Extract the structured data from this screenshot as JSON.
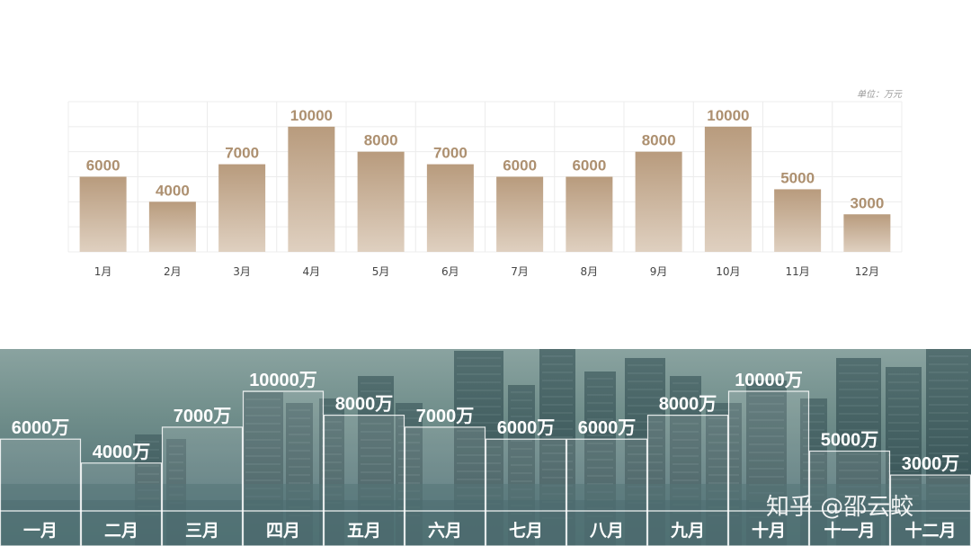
{
  "chart_data": [
    {
      "type": "bar",
      "unit_label": "单位：万元",
      "categories": [
        "1月",
        "2月",
        "3月",
        "4月",
        "5月",
        "6月",
        "7月",
        "8月",
        "9月",
        "10月",
        "11月",
        "12月"
      ],
      "values": [
        6000,
        4000,
        7000,
        10000,
        8000,
        7000,
        6000,
        6000,
        8000,
        10000,
        5000,
        3000
      ],
      "value_labels": [
        "6000",
        "4000",
        "7000",
        "10000",
        "8000",
        "7000",
        "6000",
        "6000",
        "8000",
        "10000",
        "5000",
        "3000"
      ],
      "ylim": [
        0,
        12000
      ],
      "grid": true,
      "colors": {
        "bar_top": "#b89b7d",
        "bar_bottom": "#dfd0c0",
        "label": "#ad9070"
      }
    },
    {
      "type": "bar",
      "categories": [
        "一月",
        "二月",
        "三月",
        "四月",
        "五月",
        "六月",
        "七月",
        "八月",
        "九月",
        "十月",
        "十一月",
        "十二月"
      ],
      "values": [
        6000,
        4000,
        7000,
        10000,
        8000,
        7000,
        6000,
        6000,
        8000,
        10000,
        5000,
        3000
      ],
      "value_labels": [
        "6000万",
        "4000万",
        "7000万",
        "10000万",
        "8000万",
        "7000万",
        "6000万",
        "6000万",
        "8000万",
        "10000万",
        "5000万",
        "3000万"
      ],
      "ylim": [
        0,
        12000
      ],
      "colors": {
        "bar_fill": "#ffffff",
        "bar_outline": "#ffffff",
        "label": "#ffffff"
      }
    }
  ],
  "watermark": "知乎 @邵云蛟"
}
